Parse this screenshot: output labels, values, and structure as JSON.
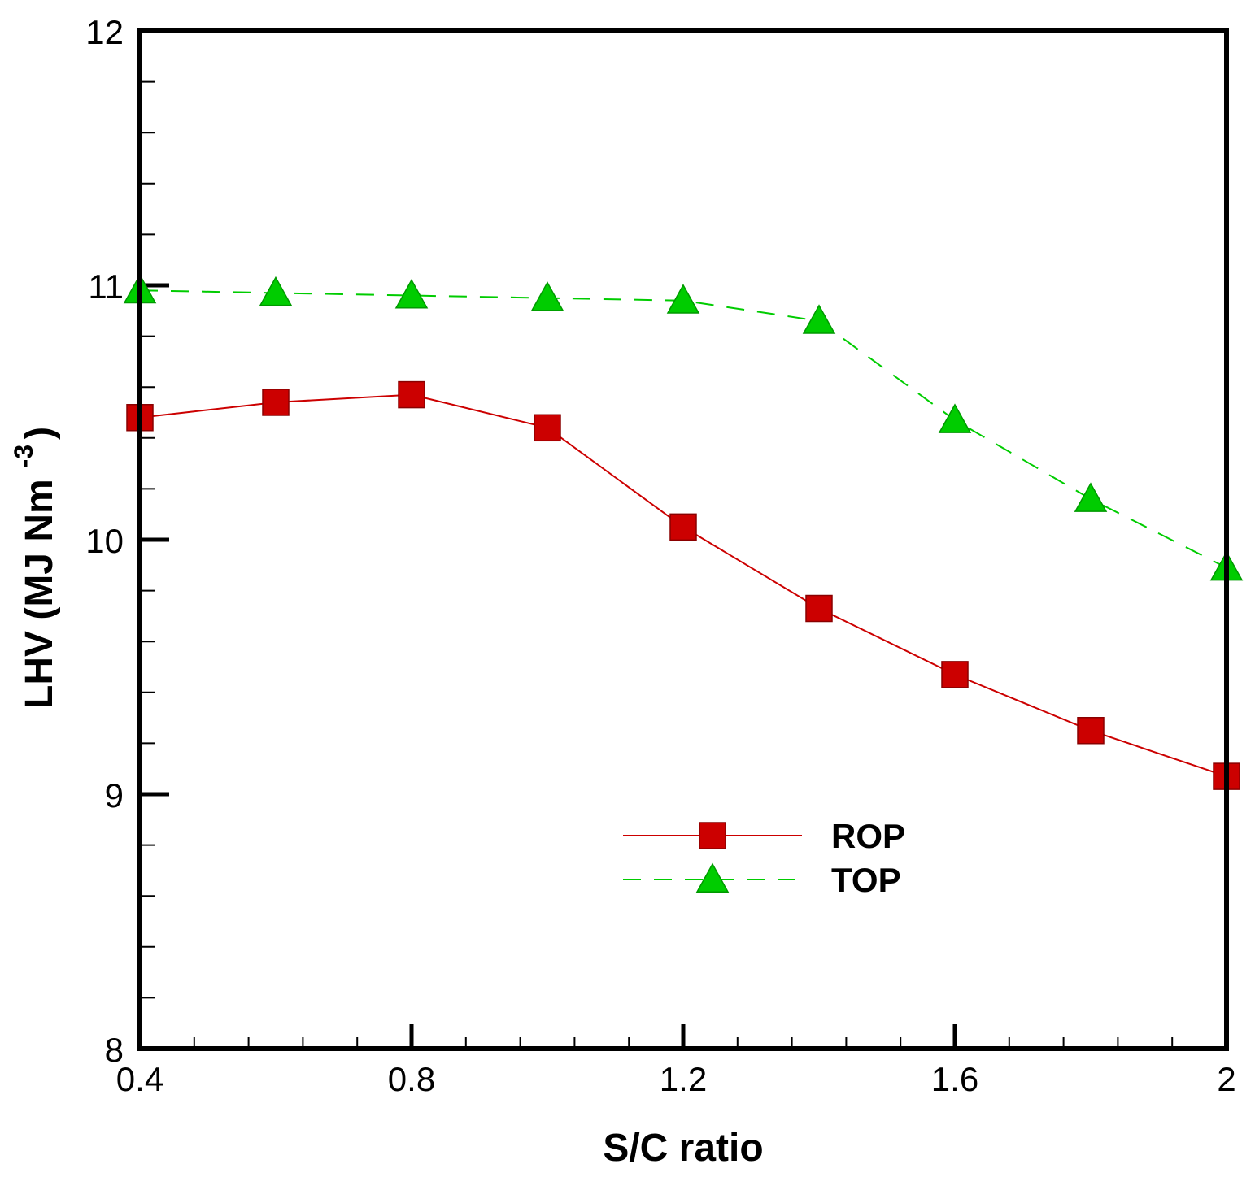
{
  "chart_data": {
    "type": "line",
    "title": "",
    "xlabel": "S/C ratio",
    "ylabel": "LHV (MJ Nm",
    "ylabel_superscript": "-3",
    "ylabel_close": ")",
    "xlim": [
      0.4,
      2.0
    ],
    "ylim": [
      8,
      12
    ],
    "x_ticks": [
      0.4,
      0.8,
      1.2,
      1.6,
      2.0
    ],
    "x_tick_labels": [
      "0.4",
      "0.8",
      "1.2",
      "1.6",
      "2"
    ],
    "x_minor_step": 0.08,
    "y_ticks": [
      8,
      9,
      10,
      11,
      12
    ],
    "y_tick_labels": [
      "8",
      "9",
      "10",
      "11",
      "12"
    ],
    "y_minor_step": 0.2,
    "grid": false,
    "legend_position": "lower-right",
    "x": [
      0.4,
      0.6,
      0.8,
      1.0,
      1.2,
      1.4,
      1.6,
      1.8,
      2.0
    ],
    "series": [
      {
        "name": "ROP",
        "values": [
          10.48,
          10.54,
          10.57,
          10.44,
          10.05,
          9.73,
          9.47,
          9.25,
          9.07
        ],
        "color": "#cc0000",
        "line_style": "solid",
        "marker": "square"
      },
      {
        "name": "TOP",
        "values": [
          10.98,
          10.97,
          10.96,
          10.95,
          10.94,
          10.86,
          10.47,
          10.16,
          9.89
        ],
        "color": "#00cc00",
        "line_style": "dashed",
        "marker": "triangle"
      }
    ]
  }
}
